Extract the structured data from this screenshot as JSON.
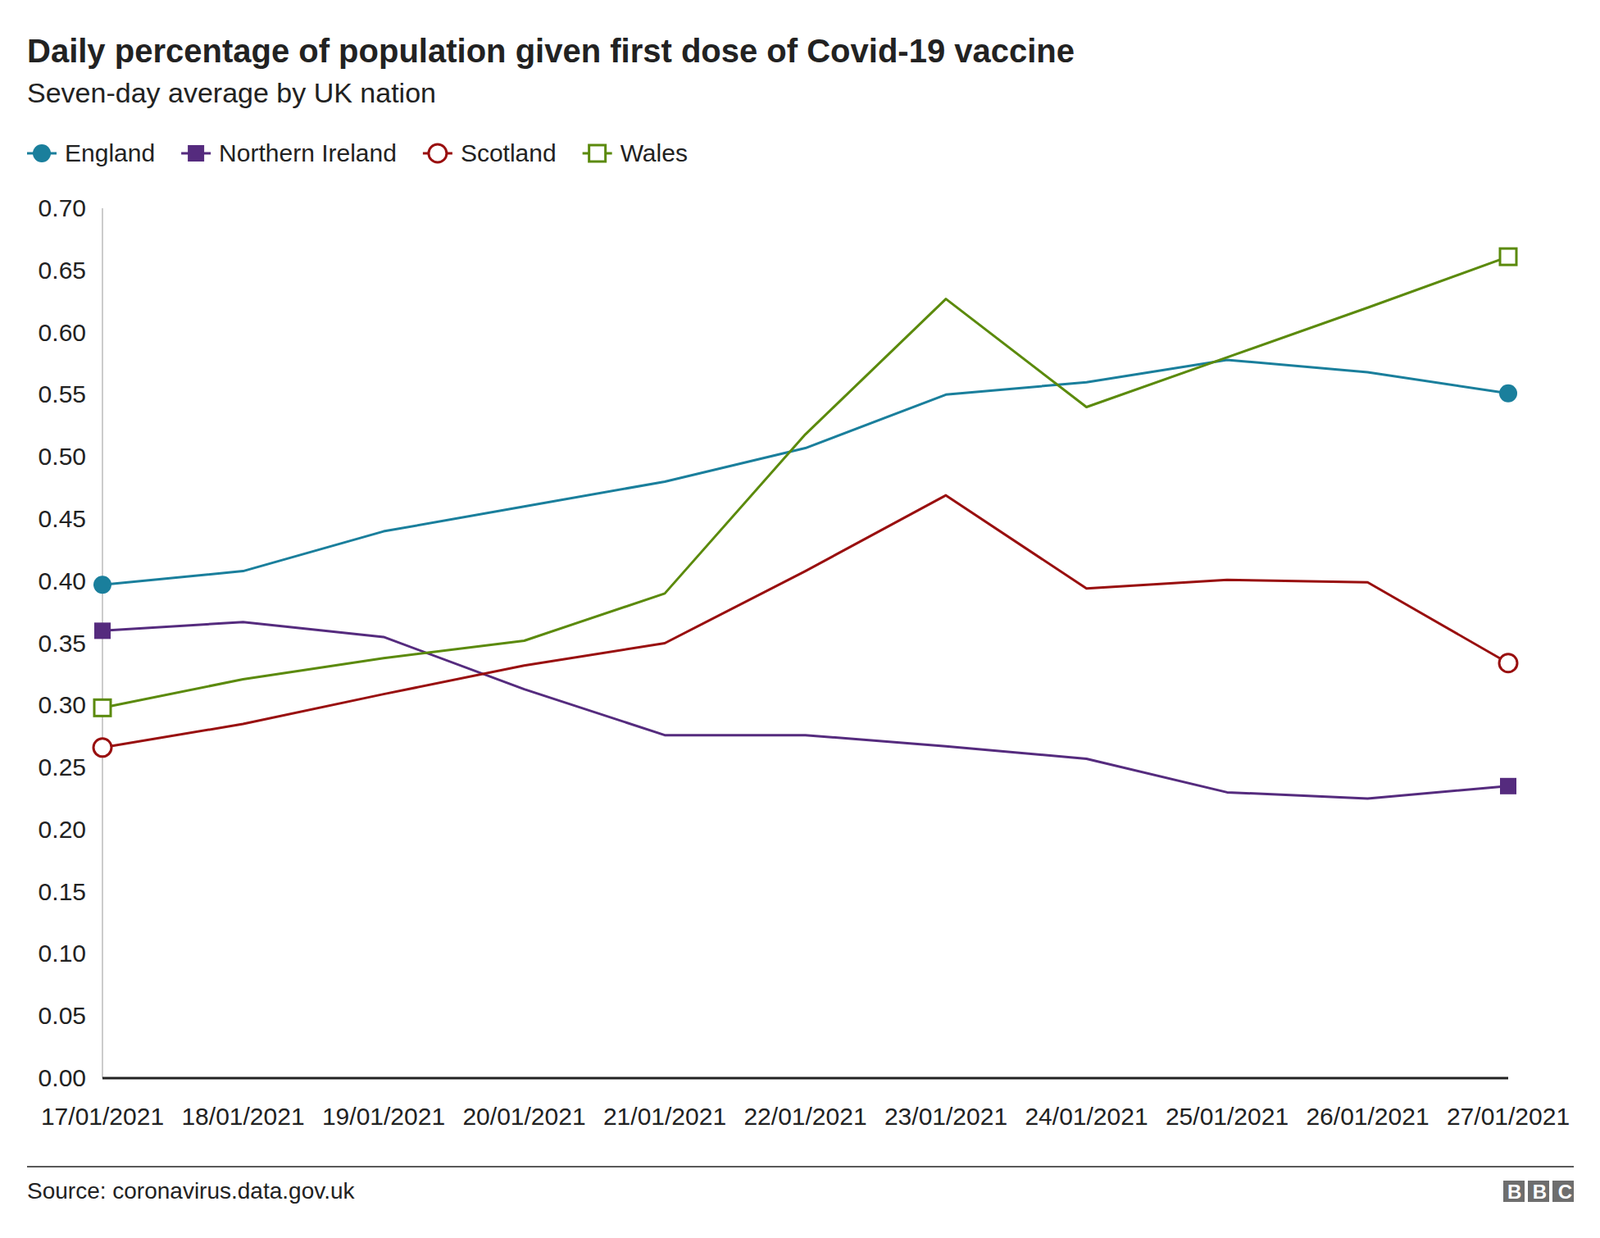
{
  "chart_data": {
    "type": "line",
    "title": "Daily percentage of population given first dose of Covid-19 vaccine",
    "subtitle": "Seven-day average by UK nation",
    "source": "Source: coronavirus.data.gov.uk",
    "logo": "BBC",
    "categories": [
      "17/01/2021",
      "18/01/2021",
      "19/01/2021",
      "20/01/2021",
      "21/01/2021",
      "22/01/2021",
      "23/01/2021",
      "24/01/2021",
      "25/01/2021",
      "26/01/2021",
      "27/01/2021"
    ],
    "series": [
      {
        "name": "England",
        "color": "#1a7f9c",
        "marker": "circle",
        "values": [
          0.397,
          0.408,
          0.44,
          0.46,
          0.48,
          0.507,
          0.55,
          0.56,
          0.578,
          0.568,
          0.551
        ]
      },
      {
        "name": "Northern Ireland",
        "color": "#552b7e",
        "marker": "square",
        "values": [
          0.36,
          0.367,
          0.355,
          0.313,
          0.276,
          0.276,
          0.267,
          0.257,
          0.23,
          0.225,
          0.235
        ]
      },
      {
        "name": "Scotland",
        "color": "#990f0f",
        "marker": "open_circle",
        "values": [
          0.266,
          0.285,
          0.309,
          0.332,
          0.35,
          0.408,
          0.469,
          0.394,
          0.401,
          0.399,
          0.334
        ]
      },
      {
        "name": "Wales",
        "color": "#5b8a0c",
        "marker": "open_square",
        "values": [
          0.298,
          0.321,
          0.338,
          0.352,
          0.39,
          0.518,
          0.627,
          0.54,
          0.58,
          0.62,
          0.661
        ]
      }
    ],
    "ylim": [
      0,
      0.7
    ],
    "yticks": [
      {
        "value": 0,
        "label": "0.00"
      },
      {
        "value": 0.05,
        "label": "0.05"
      },
      {
        "value": 0.1,
        "label": "0.10"
      },
      {
        "value": 0.15,
        "label": "0.15"
      },
      {
        "value": 0.2,
        "label": "0.20"
      },
      {
        "value": 0.25,
        "label": "0.25"
      },
      {
        "value": 0.3,
        "label": "0.30"
      },
      {
        "value": 0.35,
        "label": "0.35"
      },
      {
        "value": 0.4,
        "label": "0.40"
      },
      {
        "value": 0.45,
        "label": "0.45"
      },
      {
        "value": 0.5,
        "label": "0.50"
      },
      {
        "value": 0.55,
        "label": "0.55"
      },
      {
        "value": 0.6,
        "label": "0.60"
      },
      {
        "value": 0.65,
        "label": "0.65"
      },
      {
        "value": 0.7,
        "label": "0.70"
      }
    ],
    "grid": false,
    "legend": "top-left"
  }
}
